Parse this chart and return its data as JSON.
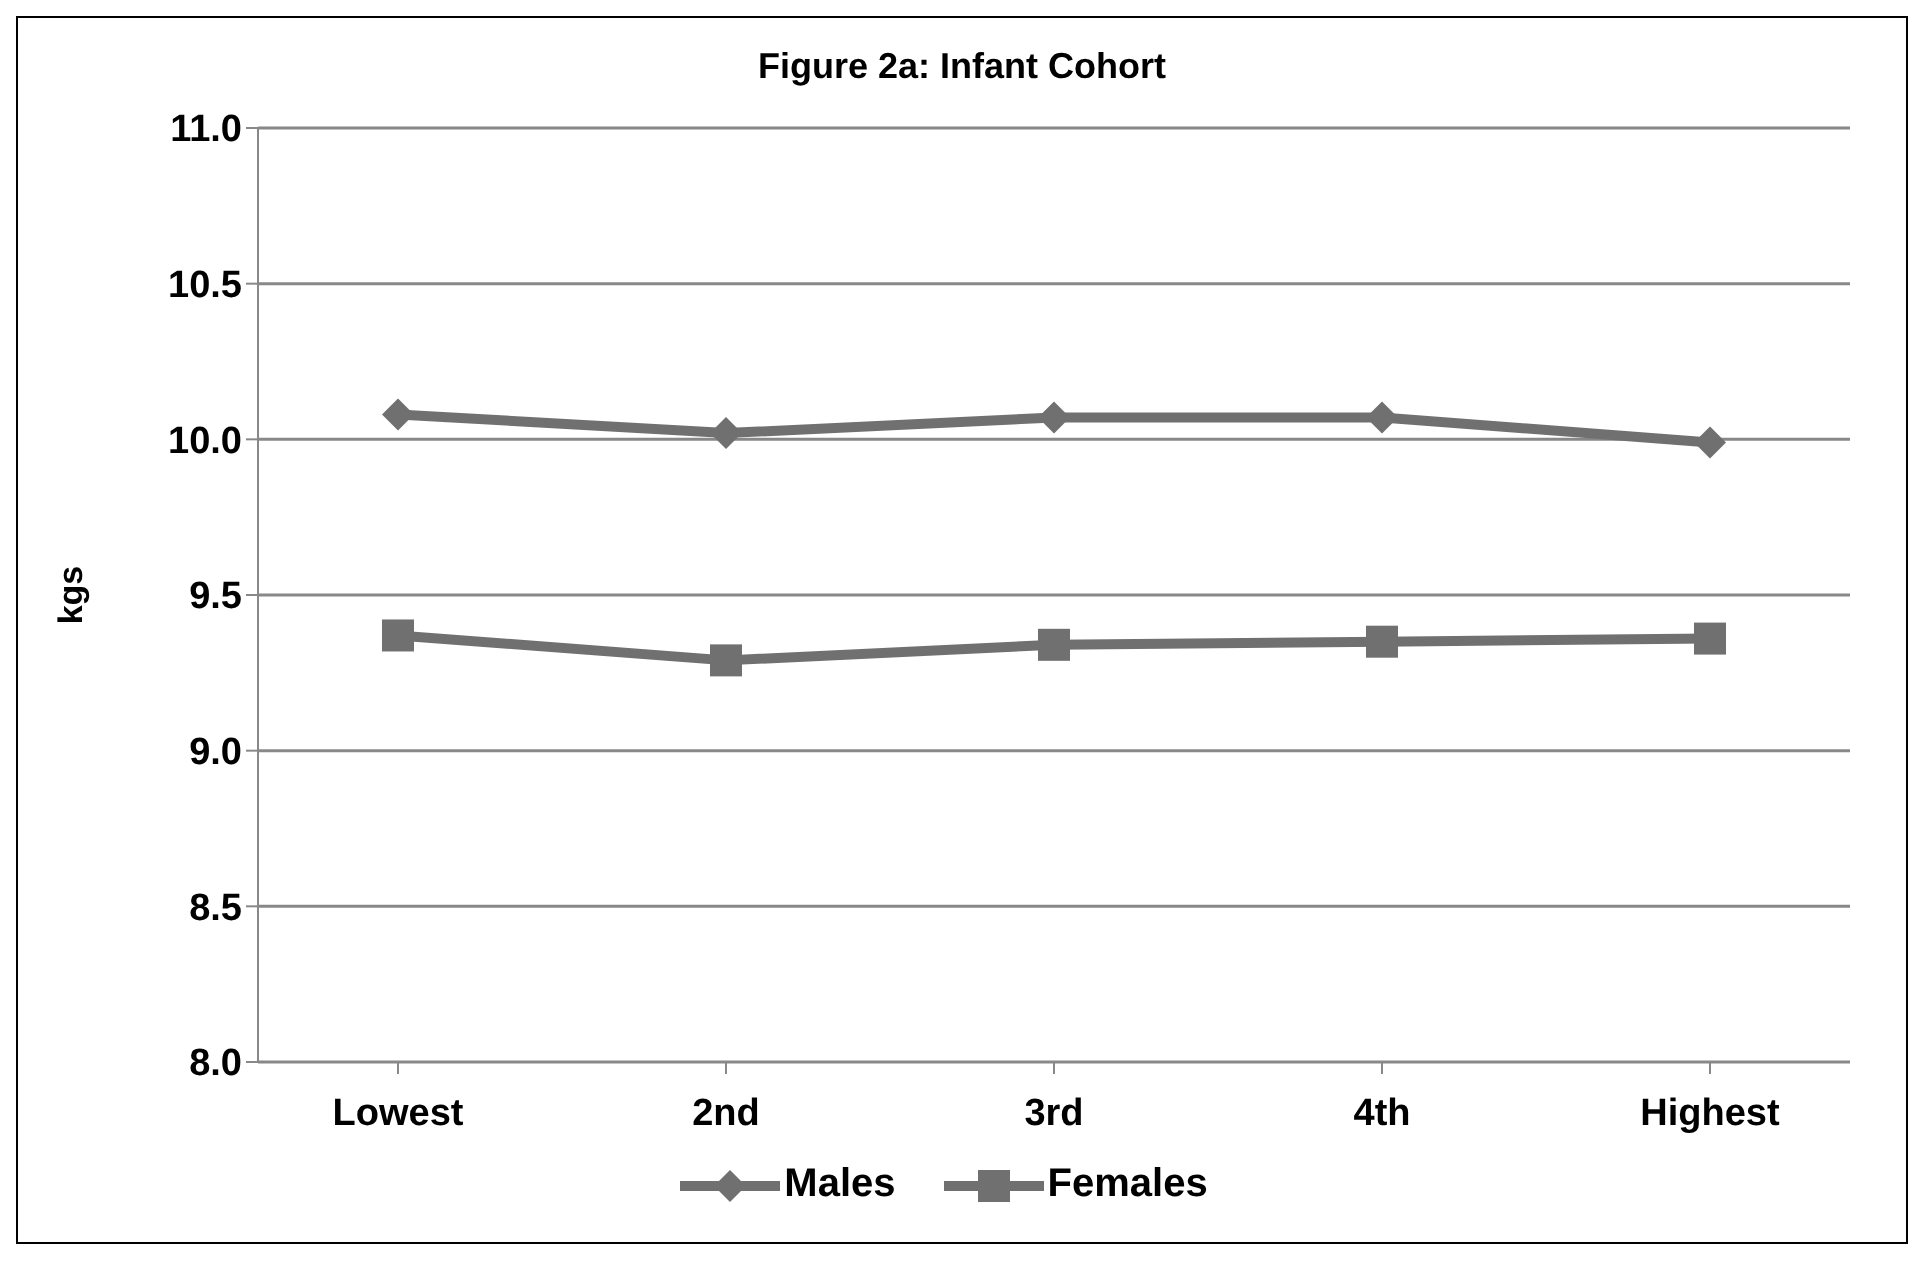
{
  "chart_data": {
    "type": "line",
    "title": "Figure 2a: Infant Cohort",
    "ylabel": "kgs",
    "categories": [
      "Lowest",
      "2nd",
      "3rd",
      "4th",
      "Highest"
    ],
    "series": [
      {
        "name": "Males",
        "color": "#707070",
        "marker": "diamond",
        "values": [
          10.08,
          10.02,
          10.07,
          10.07,
          9.99
        ]
      },
      {
        "name": "Females",
        "color": "#707070",
        "marker": "square",
        "values": [
          9.37,
          9.29,
          9.34,
          9.35,
          9.36
        ]
      }
    ],
    "ylim": [
      8.0,
      11.0
    ],
    "yticks": [
      {
        "value": 8,
        "label": "8.0"
      },
      8.5,
      {
        "value": 9,
        "label": "9.0"
      },
      9.5,
      {
        "value": 10,
        "label": "10.0"
      },
      10.5,
      {
        "value": 11,
        "label": "11.0"
      }
    ],
    "grid": "y",
    "legend": "bottom"
  }
}
